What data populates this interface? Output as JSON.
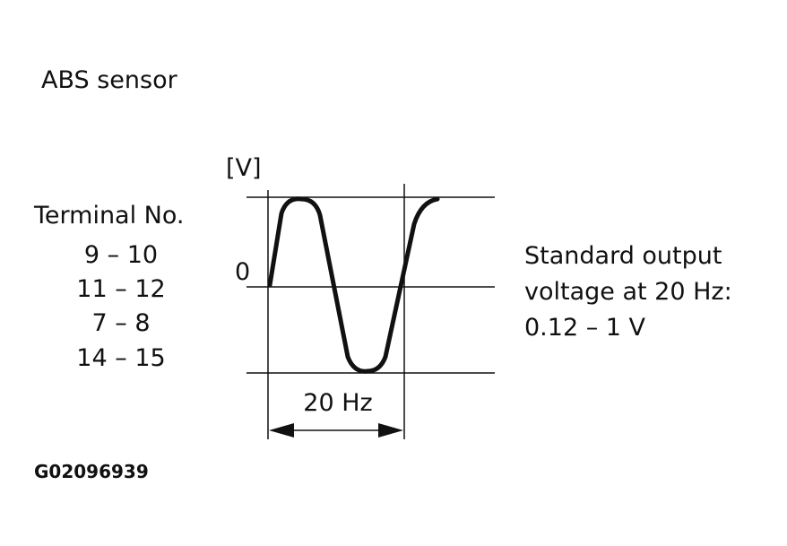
{
  "title": "ABS sensor",
  "terminal": {
    "label": "Terminal No.",
    "items": [
      "9 – 10",
      "11 – 12",
      "7 – 8",
      "14 – 15"
    ]
  },
  "graph": {
    "y_unit": "[V]",
    "zero_label": "0",
    "period_label": "20 Hz"
  },
  "note": [
    "Standard output",
    "voltage at 20 Hz:",
    "0.12 – 1 V"
  ],
  "code": "G02096939"
}
